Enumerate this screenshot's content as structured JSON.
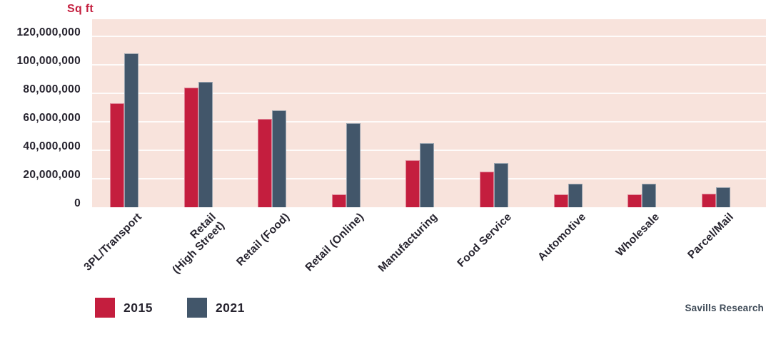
{
  "chart_data": {
    "type": "bar",
    "title": "",
    "ylabel": "Sq ft",
    "xlabel": "",
    "categories": [
      "3PL/Transport",
      "Retail\n(High Street)",
      "Retail (Food)",
      "Retail (Online)",
      "Manufacturing",
      "Food Service",
      "Automotive",
      "Wholesale",
      "Parcel/Mail"
    ],
    "series": [
      {
        "name": "2015",
        "color": "#C41E3E",
        "values": [
          73000000,
          84000000,
          62000000,
          9000000,
          33000000,
          25000000,
          9000000,
          9000000,
          9500000
        ]
      },
      {
        "name": "2021",
        "color": "#42566A",
        "values": [
          108000000,
          88000000,
          68000000,
          59000000,
          45000000,
          31000000,
          16500000,
          16500000,
          14000000
        ]
      }
    ],
    "ylim": [
      0,
      132000000
    ],
    "yticks": [
      0,
      20000000,
      40000000,
      60000000,
      80000000,
      100000000,
      120000000
    ],
    "ytick_labels": [
      "0",
      "20,000,000",
      "40,000,000",
      "60,000,000",
      "80,000,000",
      "100,000,000",
      "120,000,000"
    ],
    "grid": "horizontal",
    "grid_color": "#FFFFFF",
    "plot_bg": "#F8E3DC",
    "legend_position": "bottom-left",
    "axis_unit_color": "#C41E3E",
    "tick_label_color": "#27242F",
    "source": "Savills Research"
  }
}
